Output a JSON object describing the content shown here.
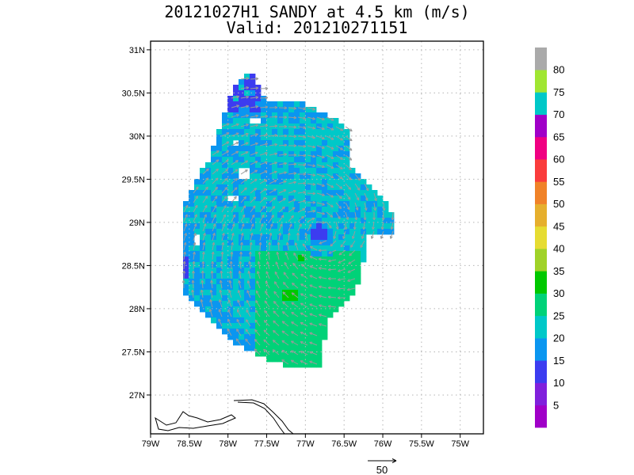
{
  "title": {
    "line1": "20121027H1 SANDY at 4.5 km (m/s)",
    "line2": "Valid: 201210271151"
  },
  "map": {
    "lon_range": [
      -79.0,
      -74.7
    ],
    "lat_range": [
      26.55,
      31.1
    ],
    "lon_ticks": [
      {
        "value": -79.0,
        "label": "79W"
      },
      {
        "value": -78.5,
        "label": "78.5W"
      },
      {
        "value": -78.0,
        "label": "78W"
      },
      {
        "value": -77.5,
        "label": "77.5W"
      },
      {
        "value": -77.0,
        "label": "77W"
      },
      {
        "value": -76.5,
        "label": "76.5W"
      },
      {
        "value": -76.0,
        "label": "76W"
      },
      {
        "value": -75.5,
        "label": "75.5W"
      },
      {
        "value": -75.0,
        "label": "75W"
      }
    ],
    "lat_ticks": [
      {
        "value": 27.0,
        "label": "27N"
      },
      {
        "value": 27.5,
        "label": "27.5N"
      },
      {
        "value": 28.0,
        "label": "28N"
      },
      {
        "value": 28.5,
        "label": "28.5N"
      },
      {
        "value": 29.0,
        "label": "29N"
      },
      {
        "value": 29.5,
        "label": "29.5N"
      },
      {
        "value": 30.0,
        "label": "30N"
      },
      {
        "value": 30.5,
        "label": "30.5N"
      },
      {
        "value": 31.0,
        "label": "31N"
      }
    ],
    "storm_center": {
      "lon": -76.82,
      "lat": 28.88
    },
    "grid": true
  },
  "colorbar": {
    "bins": [
      {
        "color": "#a000c8",
        "label": "5"
      },
      {
        "color": "#8020dc",
        "label": "10"
      },
      {
        "color": "#3c3cf0",
        "label": "15"
      },
      {
        "color": "#0a96f0",
        "label": "20"
      },
      {
        "color": "#00c8c8",
        "label": "25"
      },
      {
        "color": "#00d278",
        "label": "30"
      },
      {
        "color": "#00c800",
        "label": "35"
      },
      {
        "color": "#a0d228",
        "label": "40"
      },
      {
        "color": "#e6dc32",
        "label": "45"
      },
      {
        "color": "#e6af2d",
        "label": "50"
      },
      {
        "color": "#f08228",
        "label": "55"
      },
      {
        "color": "#fa3c3c",
        "label": "60"
      },
      {
        "color": "#f00082",
        "label": "65"
      },
      {
        "color": "#a000c8",
        "label": "70"
      },
      {
        "color": "#00c8c8",
        "label": "75"
      },
      {
        "color": "#a0e632",
        "label": "80"
      },
      {
        "color": "#aaaaaa",
        "label": ""
      }
    ]
  },
  "vector_reference": {
    "label": "50"
  }
}
